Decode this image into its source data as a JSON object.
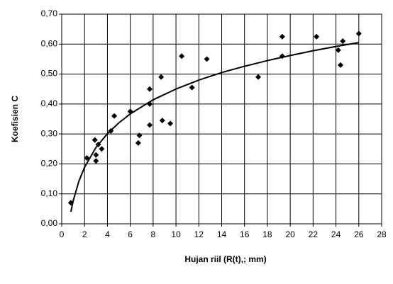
{
  "chart_data": {
    "type": "scatter",
    "xlabel": "Hujan riil (R(t),; mm)",
    "ylabel": "Koefisien C",
    "x": [
      0.8,
      2.2,
      2.9,
      3.0,
      3.0,
      3.2,
      3.5,
      4.3,
      4.6,
      6.0,
      6.7,
      6.8,
      7.7,
      7.7,
      7.7,
      8.7,
      8.8,
      9.5,
      10.5,
      11.4,
      12.7,
      17.2,
      19.3,
      19.3,
      22.3,
      24.2,
      24.4,
      24.6,
      26.0
    ],
    "values": [
      0.07,
      0.22,
      0.28,
      0.21,
      0.23,
      0.265,
      0.25,
      0.31,
      0.36,
      0.375,
      0.27,
      0.295,
      0.33,
      0.4,
      0.45,
      0.49,
      0.345,
      0.335,
      0.56,
      0.455,
      0.55,
      0.49,
      0.625,
      0.56,
      0.625,
      0.58,
      0.53,
      0.61,
      0.635
    ],
    "color": "#000000",
    "trend": {
      "x": [
        0.8,
        1,
        1.5,
        2,
        3,
        4,
        5,
        6,
        8,
        10,
        12,
        14,
        16,
        18,
        20,
        22,
        24,
        26
      ],
      "values": [
        0.04,
        0.076,
        0.142,
        0.189,
        0.255,
        0.301,
        0.337,
        0.367,
        0.414,
        0.45,
        0.48,
        0.505,
        0.526,
        0.545,
        0.562,
        0.578,
        0.592,
        0.605
      ]
    },
    "xlim": [
      0,
      28
    ],
    "xticks": [
      0,
      2,
      4,
      6,
      8,
      10,
      12,
      14,
      16,
      18,
      20,
      22,
      24,
      26,
      28
    ],
    "ylim": [
      0,
      0.7
    ],
    "yticks": [
      {
        "value": 0,
        "label": "0,00"
      },
      {
        "value": 0.1,
        "label": "0,10"
      },
      {
        "value": 0.2,
        "label": "0,20"
      },
      {
        "value": 0.3,
        "label": "0,30"
      },
      {
        "value": 0.4,
        "label": "0,40"
      },
      {
        "value": 0.5,
        "label": "0,50"
      },
      {
        "value": 0.6,
        "label": "0,60"
      },
      {
        "value": 0.7,
        "label": "0,70"
      }
    ],
    "grid": true
  }
}
